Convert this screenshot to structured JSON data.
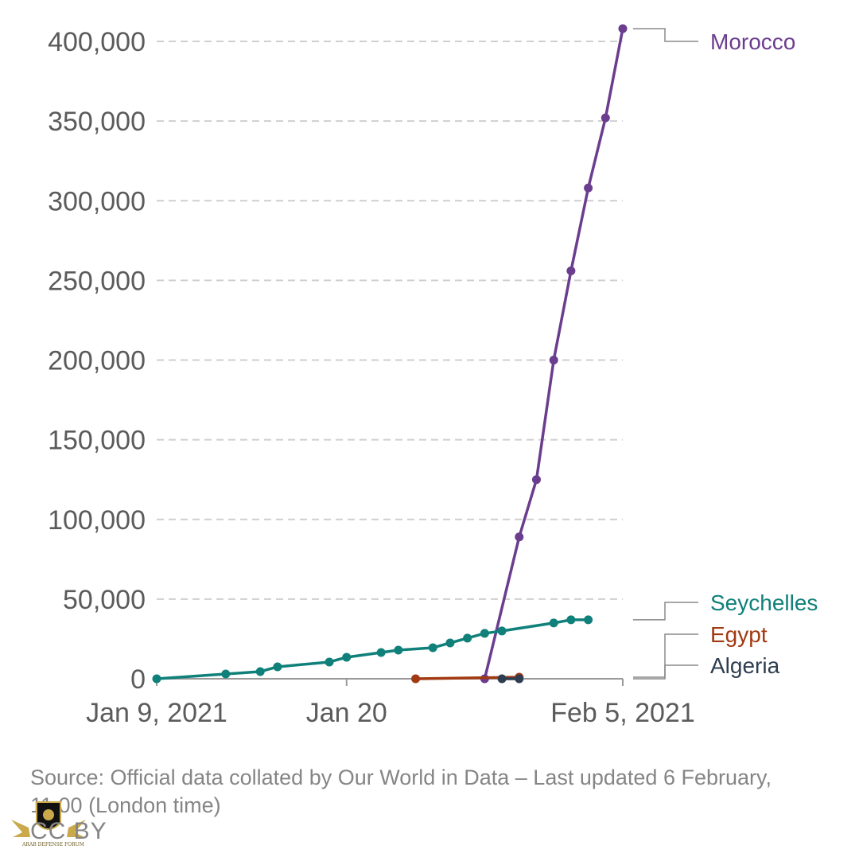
{
  "chart_data": {
    "type": "line",
    "title": "",
    "xlabel": "",
    "ylabel": "",
    "ylim": [
      0,
      400000
    ],
    "xlim": [
      "2021-01-09",
      "2021-02-05"
    ],
    "grid": true,
    "legend": "end-of-line labels, right",
    "y_ticks": [
      0,
      50000,
      100000,
      150000,
      200000,
      250000,
      300000,
      350000,
      400000
    ],
    "y_tick_labels": [
      "0",
      "50,000",
      "100,000",
      "150,000",
      "200,000",
      "250,000",
      "300,000",
      "350,000",
      "400,000"
    ],
    "x_ticks": [
      "2021-01-09",
      "2021-01-20",
      "2021-02-05"
    ],
    "x_tick_labels": [
      "Jan 9, 2021",
      "Jan 20",
      "Feb 5, 2021"
    ],
    "series": [
      {
        "name": "Morocco",
        "color": "#6b3d8e",
        "points": [
          [
            "2021-01-28",
            0
          ],
          [
            "2021-01-30",
            89000
          ],
          [
            "2021-01-31",
            125000
          ],
          [
            "2021-02-01",
            200000
          ],
          [
            "2021-02-02",
            256000
          ],
          [
            "2021-02-03",
            308000
          ],
          [
            "2021-02-04",
            352000
          ],
          [
            "2021-02-05",
            408000
          ]
        ]
      },
      {
        "name": "Seychelles",
        "color": "#10807a",
        "points": [
          [
            "2021-01-09",
            0
          ],
          [
            "2021-01-13",
            3000
          ],
          [
            "2021-01-15",
            4500
          ],
          [
            "2021-01-16",
            7500
          ],
          [
            "2021-01-19",
            10500
          ],
          [
            "2021-01-20",
            13500
          ],
          [
            "2021-01-22",
            16500
          ],
          [
            "2021-01-23",
            18000
          ],
          [
            "2021-01-25",
            19500
          ],
          [
            "2021-01-26",
            22500
          ],
          [
            "2021-01-27",
            25500
          ],
          [
            "2021-01-28",
            28500
          ],
          [
            "2021-01-29",
            30000
          ],
          [
            "2021-02-01",
            35000
          ],
          [
            "2021-02-02",
            37000
          ],
          [
            "2021-02-03",
            37000
          ]
        ]
      },
      {
        "name": "Egypt",
        "color": "#a13a12",
        "points": [
          [
            "2021-01-24",
            0
          ],
          [
            "2021-01-30",
            1000
          ]
        ]
      },
      {
        "name": "Algeria",
        "color": "#2e3d4f",
        "points": [
          [
            "2021-01-29",
            0
          ],
          [
            "2021-01-30",
            0
          ]
        ]
      }
    ],
    "source_note": "Source: Official data collated by Our World in Data – Last updated 6 February, 11:00 (London time)",
    "license": "CC BY",
    "watermark_text": "ARAB DEFENSE FORUM"
  },
  "colors": {
    "grid": "#cfcfcf",
    "axis": "#999999",
    "tick_text": "#5b5b5b",
    "note_text": "#858585"
  }
}
